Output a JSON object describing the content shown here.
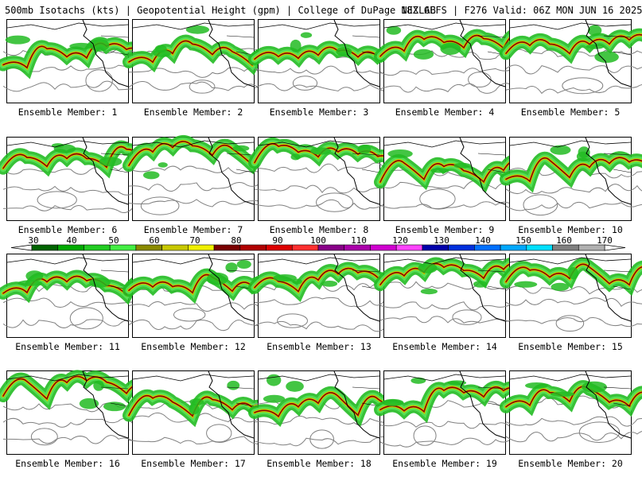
{
  "header": {
    "left": "500mb Isotachs (kts) | Geopotential Height (gpm) | College of DuPage NEXLAB",
    "right": "18Z GEFS | F276 Valid: 06Z MON JUN 16 2025"
  },
  "panel_label_prefix": "Ensemble Member: ",
  "members": [
    "1",
    "2",
    "3",
    "4",
    "5",
    "6",
    "7",
    "8",
    "9",
    "10",
    "11",
    "12",
    "13",
    "14",
    "15",
    "16",
    "17",
    "18",
    "19",
    "20"
  ],
  "colorbar": {
    "labels": [
      "30",
      "40",
      "50",
      "60",
      "70",
      "80",
      "90",
      "100",
      "110",
      "120",
      "130",
      "140",
      "150",
      "160",
      "170"
    ],
    "colors": [
      "#006400",
      "#00aa00",
      "#22cc22",
      "#44ee44",
      "#8b8b00",
      "#c8c800",
      "#f0f000",
      "#7a0000",
      "#b00000",
      "#dd0000",
      "#ff3030",
      "#880088",
      "#aa00aa",
      "#d000d0",
      "#ff44ff",
      "#0000aa",
      "#0030dd",
      "#0070ff",
      "#00a8ff",
      "#00e0ff",
      "#808080",
      "#b0b0b0"
    ]
  },
  "map_colors": {
    "jet_outer": "#22bb22",
    "jet_mid": "#55e055",
    "jet_core": "#c8c800",
    "jet_max": "#8b0000",
    "contour": "#808080",
    "coast": "#000000"
  }
}
